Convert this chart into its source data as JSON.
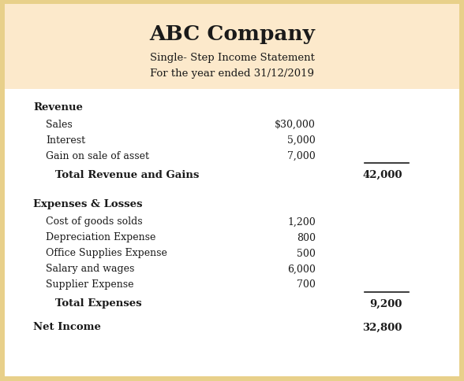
{
  "title": "ABC Company",
  "subtitle1": "Single- Step Income Statement",
  "subtitle2": "For the year ended 31/12/2019",
  "header_bg": "#fce9cb",
  "border_color": "#e8d08a",
  "body_bg": "#ffffff",
  "text_color": "#1a1a1a",
  "revenue_section": {
    "header": "Revenue",
    "items": [
      {
        "label": "Sales",
        "value": "$30,000"
      },
      {
        "label": "Interest",
        "value": "5,000"
      },
      {
        "label": "Gain on sale of asset",
        "value": "7,000"
      }
    ],
    "total_label": "Total Revenue and Gains",
    "total_value": "42,000"
  },
  "expenses_section": {
    "header": "Expenses & Losses",
    "items": [
      {
        "label": "Cost of goods solds",
        "value": "1,200"
      },
      {
        "label": "Depreciation Expense",
        "value": "800"
      },
      {
        "label": "Office Supplies Expense",
        "value": "500"
      },
      {
        "label": "Salary and wages",
        "value": "6,000"
      },
      {
        "label": "Supplier Expense",
        "value": "700"
      }
    ],
    "total_label": "Total Expenses",
    "total_value": "9,200"
  },
  "net_income_label": "Net Income",
  "net_income_value": "32,800",
  "fig_width": 5.88,
  "fig_height": 4.85,
  "dpi": 100
}
